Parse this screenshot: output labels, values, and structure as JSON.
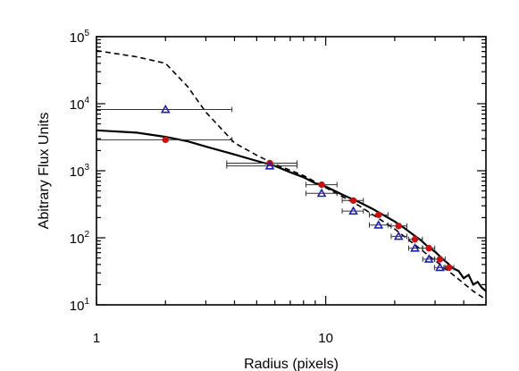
{
  "chart_data": {
    "type": "scatter",
    "title": "",
    "xlabel": "Radius (pixels)",
    "ylabel": "Abitrary Flux Units",
    "xscale": "log",
    "yscale": "log",
    "xlim": [
      1,
      50
    ],
    "ylim": [
      10,
      100000
    ],
    "grid": false,
    "legend": "none",
    "x_tick_labels": [
      {
        "value": 1,
        "label": "1"
      },
      {
        "value": 10,
        "label": "10"
      }
    ],
    "y_tick_labels": [
      {
        "value": 10,
        "base": "10",
        "exp": "1"
      },
      {
        "value": 100,
        "base": "10",
        "exp": "2"
      },
      {
        "value": 1000,
        "base": "10",
        "exp": "3"
      },
      {
        "value": 10000,
        "base": "10",
        "exp": "4"
      },
      {
        "value": 100000,
        "base": "10",
        "exp": "5"
      }
    ],
    "series": [
      {
        "style": "solid-line",
        "color": "#000000",
        "x": [
          1.0,
          1.5,
          2.0,
          2.5,
          3.0,
          4.0,
          5.0,
          6.0,
          7.0,
          8.0,
          9.0,
          10.0,
          12.0,
          14.0,
          16.0,
          18.0,
          20.0,
          22.0,
          24.0,
          26.0,
          28.0,
          30.0,
          32.0,
          34.0,
          36.0,
          38.0,
          40.0,
          42.0,
          44.0,
          46.0,
          48.0,
          50.0
        ],
        "y": [
          4000,
          3700,
          3200,
          2750,
          2300,
          1750,
          1400,
          1180,
          950,
          800,
          650,
          580,
          430,
          340,
          270,
          215,
          175,
          140,
          112,
          92,
          73,
          62,
          50,
          42,
          35,
          32,
          25,
          28,
          20,
          22,
          18,
          16
        ]
      },
      {
        "style": "dashed-line",
        "color": "#000000",
        "x": [
          1.0,
          1.5,
          2.0,
          2.5,
          3.0,
          4.0,
          5.0,
          6.0,
          8.0,
          10.0,
          14.0,
          20.0,
          28.0,
          36.0,
          44.0,
          50.0
        ],
        "y": [
          62000,
          50000,
          40000,
          18000,
          7500,
          2600,
          1700,
          1250,
          850,
          560,
          300,
          135,
          55,
          28,
          16,
          12
        ]
      },
      {
        "style": "circle-markers",
        "color": "#cc1010",
        "x": [
          2.0,
          5.7,
          9.6,
          13.2,
          17.0,
          20.8,
          24.5,
          28.2,
          31.5,
          34.5
        ],
        "y": [
          2900,
          1300,
          620,
          360,
          220,
          150,
          95,
          70,
          48,
          36
        ],
        "xerr_low": [
          1.0,
          3.7,
          8.2,
          11.8,
          15.5,
          19.3,
          23.0,
          26.5,
          29.8,
          32.8
        ],
        "xerr_high": [
          3.9,
          7.5,
          11.2,
          14.6,
          18.7,
          22.6,
          26.4,
          29.9,
          33.2,
          36.2
        ]
      },
      {
        "style": "triangle-markers",
        "color": "#2020b0",
        "x": [
          2.0,
          5.7,
          9.6,
          13.2,
          17.0,
          20.8,
          24.5,
          28.2,
          31.5
        ],
        "y": [
          8200,
          1180,
          460,
          250,
          155,
          105,
          70,
          48,
          36
        ],
        "xerr_low": [
          1.0,
          3.7,
          8.2,
          11.8,
          15.5,
          19.3,
          23.0,
          26.5,
          29.8
        ],
        "xerr_high": [
          3.9,
          7.5,
          11.2,
          14.6,
          18.7,
          22.6,
          26.4,
          29.9,
          33.2
        ]
      }
    ]
  }
}
